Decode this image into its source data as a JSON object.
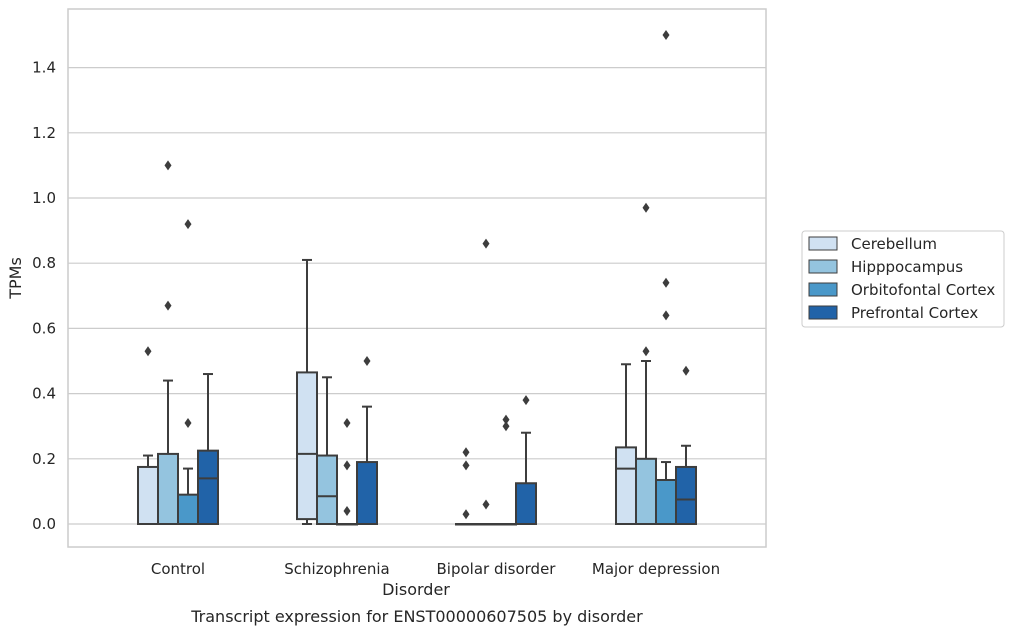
{
  "chart_data": {
    "type": "box",
    "title": "Transcript expression for ENST00000607505 by disorder",
    "xlabel": "Disorder",
    "ylabel": "TPMs",
    "ylim": [
      -0.07,
      1.58
    ],
    "yticks": [
      "0.0",
      "0.2",
      "0.4",
      "0.6",
      "0.8",
      "1.0",
      "1.2",
      "1.4"
    ],
    "grid": "horizontal",
    "legend_position": "right",
    "categories": [
      "Control",
      "Schizophrenia",
      "Bipolar disorder",
      "Major depression"
    ],
    "series": [
      {
        "name": "Cerebellum",
        "color": "#d0e1f2",
        "boxes": [
          {
            "whislo": 0.0,
            "q1": 0.0,
            "med": 0.0,
            "q3": 0.175,
            "whishi": 0.21,
            "fliers": [
              0.53
            ]
          },
          {
            "whislo": 0.0,
            "q1": 0.015,
            "med": 0.215,
            "q3": 0.465,
            "whishi": 0.81,
            "fliers": []
          },
          {
            "whislo": 0.0,
            "q1": 0.0,
            "med": 0.0,
            "q3": 0.0,
            "whishi": 0.0,
            "fliers": [
              0.22,
              0.18,
              0.03
            ]
          },
          {
            "whislo": 0.0,
            "q1": 0.0,
            "med": 0.17,
            "q3": 0.235,
            "whishi": 0.49,
            "fliers": []
          }
        ]
      },
      {
        "name": "Hipppocampus",
        "color": "#94c4df",
        "boxes": [
          {
            "whislo": 0.0,
            "q1": 0.0,
            "med": 0.0,
            "q3": 0.215,
            "whishi": 0.44,
            "fliers": [
              1.1,
              0.67
            ]
          },
          {
            "whislo": 0.0,
            "q1": 0.0,
            "med": 0.085,
            "q3": 0.21,
            "whishi": 0.45,
            "fliers": []
          },
          {
            "whislo": 0.0,
            "q1": 0.0,
            "med": 0.0,
            "q3": 0.0,
            "whishi": 0.0,
            "fliers": [
              0.86,
              0.06
            ]
          },
          {
            "whislo": 0.0,
            "q1": 0.0,
            "med": 0.0,
            "q3": 0.2,
            "whishi": 0.5,
            "fliers": [
              0.97,
              0.53
            ]
          }
        ]
      },
      {
        "name": "Orbitofontal Cortex",
        "color": "#4a98c9",
        "boxes": [
          {
            "whislo": 0.0,
            "q1": 0.0,
            "med": 0.0,
            "q3": 0.09,
            "whishi": 0.17,
            "fliers": [
              0.92,
              0.31
            ]
          },
          {
            "whislo": 0.0,
            "q1": 0.0,
            "med": 0.0,
            "q3": 0.0,
            "whishi": 0.0,
            "fliers": [
              0.31,
              0.18,
              0.04
            ]
          },
          {
            "whislo": 0.0,
            "q1": 0.0,
            "med": 0.0,
            "q3": 0.0,
            "whishi": 0.0,
            "fliers": [
              0.32,
              0.3
            ]
          },
          {
            "whislo": 0.0,
            "q1": 0.0,
            "med": 0.0,
            "q3": 0.135,
            "whishi": 0.19,
            "fliers": [
              1.5,
              0.74,
              0.64
            ]
          }
        ]
      },
      {
        "name": "Prefrontal Cortex",
        "color": "#2163a8",
        "boxes": [
          {
            "whislo": 0.0,
            "q1": 0.0,
            "med": 0.14,
            "q3": 0.225,
            "whishi": 0.46,
            "fliers": []
          },
          {
            "whislo": 0.0,
            "q1": 0.0,
            "med": 0.0,
            "q3": 0.19,
            "whishi": 0.36,
            "fliers": [
              0.5
            ]
          },
          {
            "whislo": 0.0,
            "q1": 0.0,
            "med": 0.0,
            "q3": 0.125,
            "whishi": 0.28,
            "fliers": [
              0.38
            ]
          },
          {
            "whislo": 0.0,
            "q1": 0.0,
            "med": 0.075,
            "q3": 0.175,
            "whishi": 0.24,
            "fliers": [
              0.47
            ]
          }
        ]
      }
    ]
  }
}
